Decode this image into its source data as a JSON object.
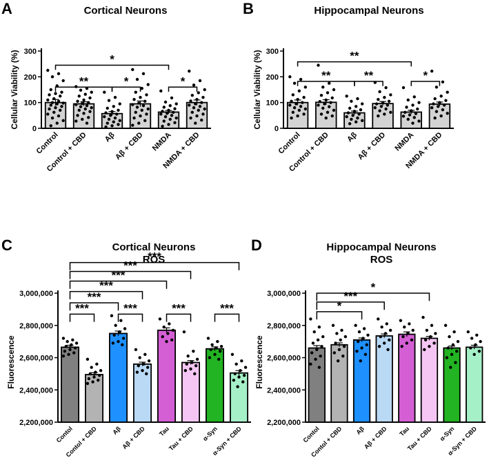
{
  "charts": [
    {
      "id": "A",
      "panel_label": "A",
      "title_lines": [
        "Cortical Neurons"
      ],
      "ylabel": "Cellular Viability (%)",
      "yticks": [
        0,
        100,
        200,
        300
      ],
      "tick_labels": [
        "0",
        "100",
        "200",
        "300"
      ]
    },
    {
      "id": "B",
      "panel_label": "B",
      "title_lines": [
        "Hippocampal Neurons"
      ],
      "ylabel": "Cellular Viability (%)",
      "yticks": [
        0,
        100,
        200,
        300
      ],
      "tick_labels": [
        "0",
        "100",
        "200",
        "300"
      ]
    },
    {
      "id": "C",
      "panel_label": "C",
      "title_lines": [
        "Cortical Neurons",
        "ROS"
      ],
      "ylabel": "Fluorescence",
      "yticks": [
        2200000,
        2400000,
        2600000,
        2800000,
        3000000
      ],
      "tick_labels": [
        "2,200,000",
        "2,400,000",
        "2,600,000",
        "2,800,000",
        "3,000,000"
      ]
    },
    {
      "id": "D",
      "panel_label": "D",
      "title_lines": [
        "Hippocampal Neurons",
        "ROS"
      ],
      "ylabel": "Fluorescence",
      "yticks": [
        2200000,
        2400000,
        2600000,
        2800000,
        3000000
      ],
      "tick_labels": [
        "2,200,000",
        "2,400,000",
        "2,600,000",
        "2,800,000",
        "3,000,000"
      ]
    }
  ],
  "chart_data": [
    {
      "panel": "A",
      "type": "bar",
      "title": "Cortical Neurons",
      "xlabel": "",
      "ylabel": "Cellular Viability (%)",
      "ylim": [
        0,
        300
      ],
      "categories": [
        "Control",
        "Control + CBD",
        "Aβ",
        "Aβ + CBD",
        "NMDA",
        "NMDA + CBD"
      ],
      "values": [
        100,
        95,
        57,
        95,
        63,
        100
      ],
      "sem": [
        12,
        8,
        8,
        11,
        6,
        10
      ],
      "colors": [
        "#d3d3d3",
        "#d3d3d3",
        "#d3d3d3",
        "#d3d3d3",
        "#d3d3d3",
        "#d3d3d3"
      ],
      "points": [
        [
          225,
          212,
          200,
          185,
          165,
          150,
          140,
          135,
          130,
          125,
          115,
          110,
          105,
          100,
          98,
          95,
          90,
          85,
          80,
          75,
          70,
          62,
          55,
          48,
          40,
          30,
          20,
          10
        ],
        [
          162,
          155,
          148,
          140,
          132,
          125,
          118,
          110,
          105,
          100,
          96,
          92,
          88,
          84,
          80,
          75,
          70,
          65,
          58,
          50,
          42,
          35,
          28,
          20
        ],
        [
          140,
          120,
          108,
          95,
          85,
          78,
          70,
          65,
          60,
          55,
          50,
          45,
          40,
          35,
          30,
          25,
          20,
          15,
          10,
          5
        ],
        [
          228,
          212,
          190,
          170,
          155,
          140,
          130,
          120,
          112,
          105,
          98,
          92,
          88,
          82,
          75,
          70,
          62,
          55,
          48,
          40,
          30,
          20,
          12
        ],
        [
          145,
          118,
          102,
          95,
          88,
          82,
          76,
          70,
          66,
          62,
          58,
          55,
          50,
          45,
          40,
          35,
          28,
          22,
          15,
          8
        ],
        [
          222,
          185,
          168,
          150,
          138,
          128,
          120,
          112,
          106,
          100,
          95,
          90,
          85,
          80,
          75,
          70,
          62,
          55,
          48,
          40,
          32,
          20
        ]
      ],
      "significance": [
        {
          "from": 0,
          "to": 4,
          "level": 245,
          "stars": "*"
        },
        {
          "from": 0,
          "to": 2,
          "level": 160,
          "stars": "**"
        },
        {
          "from": 2,
          "to": 3,
          "level": 160,
          "stars": "*"
        },
        {
          "from": 4,
          "to": 5,
          "level": 160,
          "stars": "*"
        }
      ]
    },
    {
      "panel": "B",
      "type": "bar",
      "title": "Hippocampal Neurons",
      "xlabel": "",
      "ylabel": "Cellular Viability (%)",
      "ylim": [
        0,
        300
      ],
      "categories": [
        "Control",
        "Control + CBD",
        "Aβ",
        "Aβ + CBD",
        "NMDA",
        "NMDA + CBD"
      ],
      "values": [
        100,
        101,
        60,
        96,
        63,
        94
      ],
      "sem": [
        10,
        10,
        7,
        8,
        7,
        8
      ],
      "colors": [
        "#d3d3d3",
        "#d3d3d3",
        "#d3d3d3",
        "#d3d3d3",
        "#d3d3d3",
        "#d3d3d3"
      ],
      "points": [
        [
          200,
          190,
          175,
          160,
          145,
          130,
          120,
          112,
          105,
          100,
          95,
          90,
          85,
          80,
          75,
          70,
          62,
          55,
          48,
          40
        ],
        [
          245,
          175,
          160,
          150,
          138,
          128,
          118,
          110,
          104,
          100,
          95,
          90,
          84,
          78,
          70,
          62,
          55,
          48,
          40
        ],
        [
          125,
          115,
          105,
          95,
          85,
          78,
          72,
          66,
          60,
          55,
          50,
          45,
          40,
          35,
          30,
          25,
          18
        ],
        [
          178,
          158,
          142,
          130,
          120,
          112,
          105,
          100,
          95,
          90,
          85,
          80,
          75,
          68,
          62,
          55,
          48
        ],
        [
          158,
          122,
          110,
          100,
          90,
          82,
          75,
          68,
          62,
          57,
          52,
          47,
          42,
          35,
          28,
          20
        ],
        [
          222,
          180,
          160,
          140,
          125,
          115,
          108,
          100,
          95,
          90,
          85,
          80,
          72,
          65,
          58,
          48,
          40
        ]
      ],
      "significance": [
        {
          "from": 0,
          "to": 4,
          "level": 258,
          "stars": "**"
        },
        {
          "from": 0,
          "to": 2,
          "level": 182,
          "stars": "**"
        },
        {
          "from": 2,
          "to": 3,
          "level": 182,
          "stars": "**"
        },
        {
          "from": 4,
          "to": 5,
          "level": 182,
          "stars": "*"
        }
      ]
    },
    {
      "panel": "C",
      "type": "bar",
      "title": "Cortical Neurons ROS",
      "xlabel": "",
      "ylabel": "Fluorescence",
      "ylim": [
        2200000,
        3000000
      ],
      "categories": [
        "Contol",
        "Contol + CBD",
        "Aβ",
        "Aβ + CBD",
        "Tau",
        "Tau + CBD",
        "α-Syn",
        "α-Syn + CBD"
      ],
      "values": [
        2665000,
        2495000,
        2750000,
        2560000,
        2770000,
        2570000,
        2655000,
        2505000
      ],
      "sem": [
        12000,
        12000,
        15000,
        12000,
        15000,
        12000,
        12000,
        15000
      ],
      "colors": [
        "#808080",
        "#b3b3b3",
        "#1e90ff",
        "#b9d9f5",
        "#d45fd4",
        "#f5c6f3",
        "#22b422",
        "#a6f0c8"
      ],
      "points": [
        [
          2720000,
          2710000,
          2700000,
          2690000,
          2680000,
          2670000,
          2660000,
          2650000,
          2640000,
          2630000,
          2620000,
          2610000
        ],
        [
          2590000,
          2560000,
          2540000,
          2520000,
          2510000,
          2500000,
          2490000,
          2480000,
          2470000,
          2460000,
          2450000,
          2440000
        ],
        [
          2860000,
          2830000,
          2800000,
          2780000,
          2760000,
          2740000,
          2720000,
          2700000,
          2690000,
          2680000
        ],
        [
          2650000,
          2620000,
          2600000,
          2580000,
          2560000,
          2550000,
          2540000,
          2520000,
          2510000,
          2500000
        ],
        [
          2840000,
          2810000,
          2790000,
          2770000,
          2750000,
          2730000,
          2710000,
          2700000
        ],
        [
          2760000,
          2640000,
          2610000,
          2590000,
          2570000,
          2560000,
          2550000,
          2530000,
          2520000,
          2500000
        ],
        [
          2720000,
          2700000,
          2680000,
          2670000,
          2660000,
          2650000,
          2640000,
          2620000,
          2600000,
          2590000
        ],
        [
          2620000,
          2580000,
          2560000,
          2540000,
          2520000,
          2500000,
          2490000,
          2480000,
          2460000,
          2450000,
          2420000
        ]
      ],
      "significance": [
        {
          "from": 0,
          "to": 7,
          "level": 3190000,
          "stars": "***"
        },
        {
          "from": 0,
          "to": 5,
          "level": 3135000,
          "stars": "***"
        },
        {
          "from": 0,
          "to": 4,
          "level": 3075000,
          "stars": "***"
        },
        {
          "from": 0,
          "to": 3,
          "level": 3010000,
          "stars": "***"
        },
        {
          "from": 0,
          "to": 2,
          "level": 2940000,
          "stars": "***"
        },
        {
          "from": 0,
          "to": 1,
          "level": 2870000,
          "stars": "***"
        },
        {
          "from": 2,
          "to": 3,
          "level": 2870000,
          "stars": "***"
        },
        {
          "from": 4,
          "to": 5,
          "level": 2870000,
          "stars": "***"
        },
        {
          "from": 6,
          "to": 7,
          "level": 2870000,
          "stars": "***"
        }
      ]
    },
    {
      "panel": "D",
      "type": "bar",
      "title": "Hippocampal Neurons ROS",
      "xlabel": "",
      "ylabel": "Fluorescence",
      "ylim": [
        2200000,
        3000000
      ],
      "categories": [
        "Contol",
        "Contol + CBD",
        "Aβ",
        "Aβ + CBD",
        "Tau",
        "Tau + CBD",
        "α-Syn",
        "α-Syn + CBD"
      ],
      "values": [
        2660000,
        2680000,
        2710000,
        2735000,
        2745000,
        2720000,
        2660000,
        2665000
      ],
      "sem": [
        15000,
        12000,
        12000,
        12000,
        15000,
        12000,
        12000,
        12000
      ],
      "colors": [
        "#808080",
        "#b3b3b3",
        "#1e90ff",
        "#b9d9f5",
        "#d45fd4",
        "#f5c6f3",
        "#22b422",
        "#a6f0c8"
      ],
      "points": [
        [
          2840000,
          2790000,
          2760000,
          2730000,
          2710000,
          2690000,
          2670000,
          2650000,
          2630000,
          2610000,
          2590000,
          2560000,
          2540000
        ],
        [
          2800000,
          2770000,
          2750000,
          2730000,
          2710000,
          2690000,
          2670000,
          2650000,
          2630000,
          2610000,
          2580000
        ],
        [
          2800000,
          2780000,
          2760000,
          2740000,
          2720000,
          2700000,
          2680000,
          2660000,
          2640000,
          2620000,
          2580000
        ],
        [
          2840000,
          2810000,
          2790000,
          2770000,
          2750000,
          2730000,
          2710000,
          2690000,
          2670000,
          2650000
        ],
        [
          2830000,
          2810000,
          2790000,
          2770000,
          2750000,
          2730000,
          2710000,
          2690000,
          2670000
        ],
        [
          2850000,
          2800000,
          2770000,
          2750000,
          2730000,
          2710000,
          2690000,
          2670000,
          2650000
        ],
        [
          2800000,
          2760000,
          2730000,
          2700000,
          2680000,
          2660000,
          2640000,
          2620000,
          2600000,
          2570000,
          2540000
        ],
        [
          2760000,
          2740000,
          2720000,
          2700000,
          2680000,
          2660000,
          2640000,
          2620000
        ]
      ],
      "significance": [
        {
          "from": 0,
          "to": 5,
          "level": 3000000,
          "stars": "*"
        },
        {
          "from": 0,
          "to": 3,
          "level": 2945000,
          "stars": "***"
        },
        {
          "from": 0,
          "to": 2,
          "level": 2885000,
          "stars": "*"
        }
      ]
    }
  ]
}
